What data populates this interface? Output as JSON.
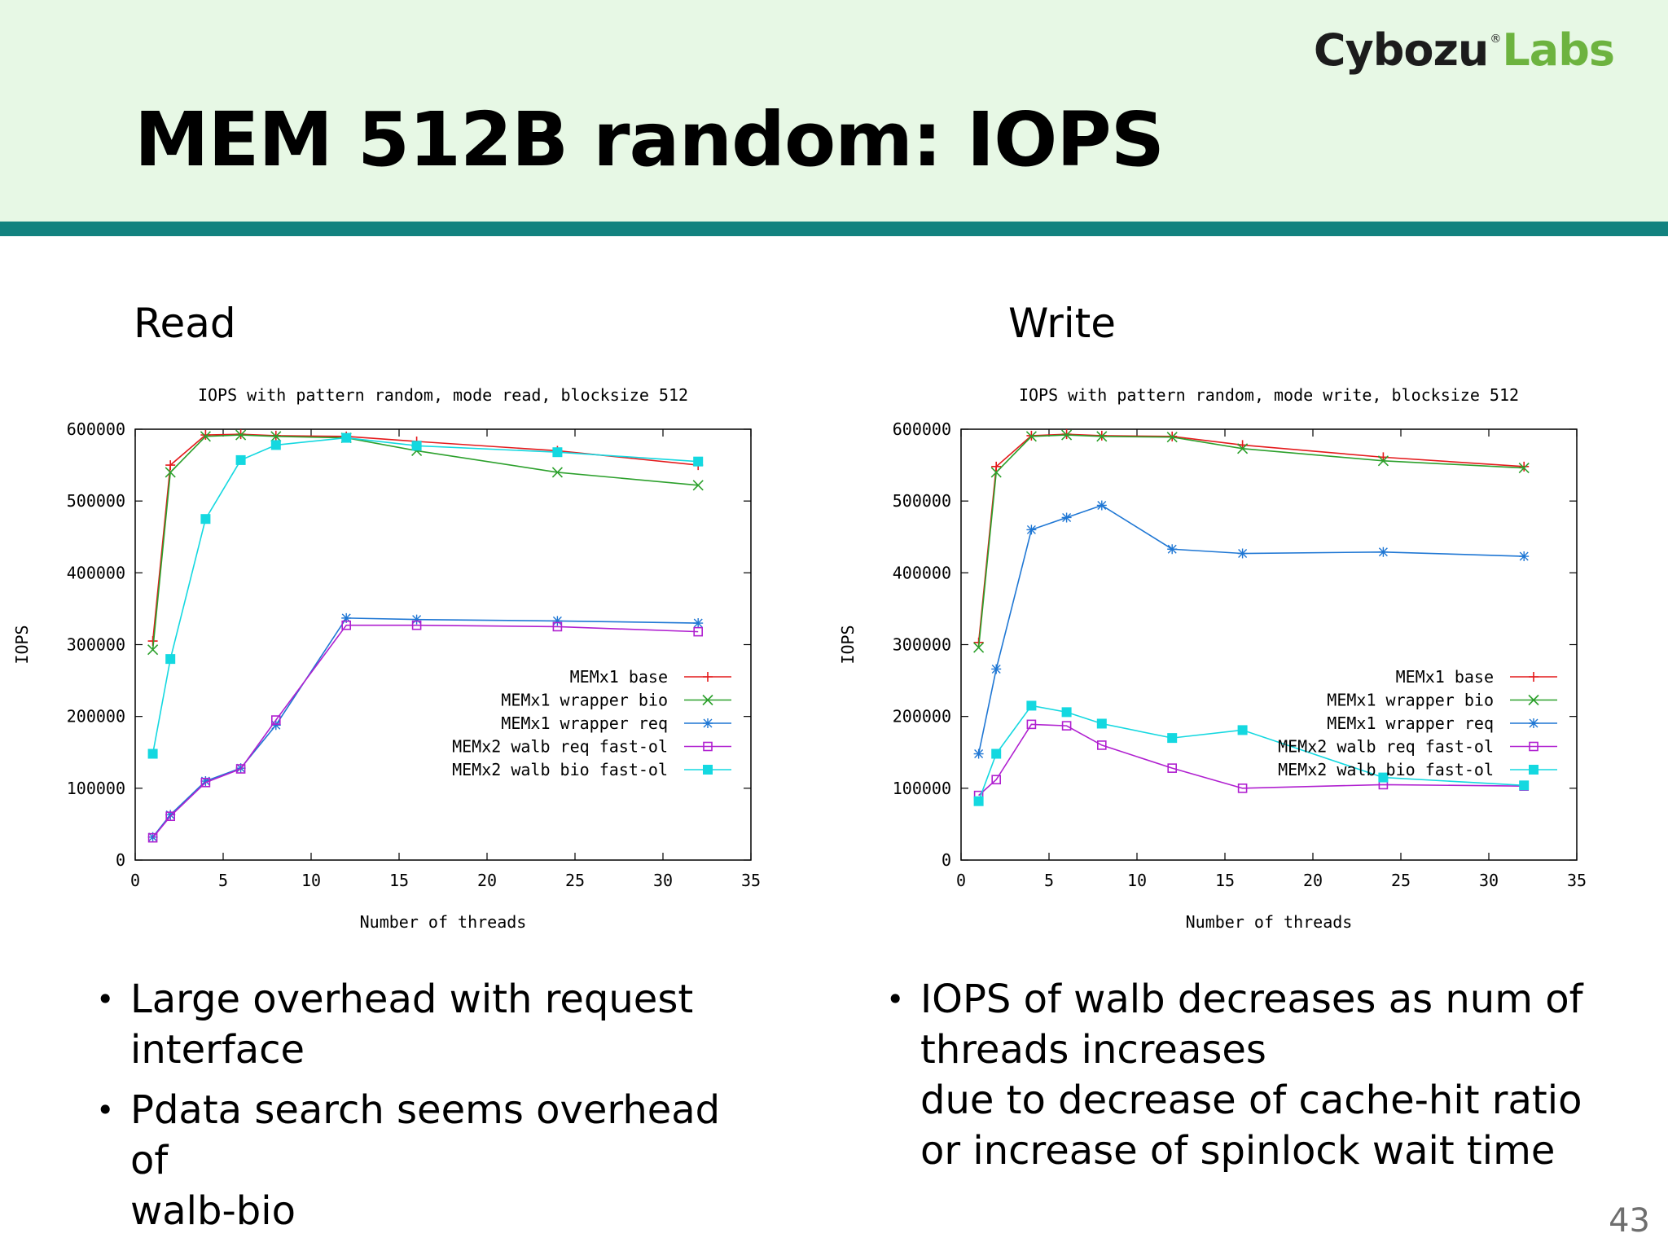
{
  "slide": {
    "title": "MEM 512B random: IOPS",
    "logo": {
      "part1": "Cybozu",
      "registered": "®",
      "part2": "Labs"
    },
    "page_number": "43",
    "colors": {
      "header_bg": "#e7f8e5",
      "header_band": "#12827f",
      "logo_green": "#6db33f"
    }
  },
  "panels": {
    "left": {
      "subhead": "Read",
      "bullets": [
        "Large overhead with request\ninterface",
        "Pdata search seems overhead of\nwalb-bio"
      ]
    },
    "right": {
      "subhead": "Write",
      "bullets": [
        "IOPS of walb decreases as num of\nthreads increases\ndue to decrease of cache-hit ratio\nor increase of spinlock wait time"
      ]
    }
  },
  "chart_data": [
    {
      "type": "line",
      "title": "IOPS with pattern random, mode read, blocksize 512",
      "xlabel": "Number of threads",
      "ylabel": "IOPS",
      "xlim": [
        0,
        35
      ],
      "ylim": [
        0,
        600000
      ],
      "xticks": [
        "0",
        "5",
        "10",
        "15",
        "20",
        "25",
        "30",
        "35"
      ],
      "yticks": [
        "0",
        "100000",
        "200000",
        "300000",
        "400000",
        "500000",
        "600000"
      ],
      "grid": false,
      "legend": "bottom-right",
      "x": [
        1,
        2,
        4,
        6,
        8,
        12,
        16,
        24,
        32
      ],
      "series": [
        {
          "name": "MEMx1 base",
          "color": "#e41a1c",
          "marker": "plus",
          "values": [
            305000,
            550000,
            592000,
            593000,
            591000,
            590000,
            583000,
            570000,
            550000
          ]
        },
        {
          "name": "MEMx1 wrapper bio",
          "color": "#2ca02c",
          "marker": "cross",
          "values": [
            293000,
            540000,
            590000,
            592000,
            590000,
            588000,
            570000,
            540000,
            522000
          ]
        },
        {
          "name": "MEMx1 wrapper req",
          "color": "#1f77d4",
          "marker": "star",
          "values": [
            32000,
            63000,
            110000,
            128000,
            188000,
            337000,
            335000,
            333000,
            330000
          ]
        },
        {
          "name": "MEMx2 walb req fast-ol",
          "color": "#b020d0",
          "marker": "square-open",
          "values": [
            31000,
            61000,
            108000,
            127000,
            195000,
            327000,
            327000,
            325000,
            318000
          ]
        },
        {
          "name": "MEMx2 walb bio fast-ol",
          "color": "#14d8e0",
          "marker": "square-filled",
          "values": [
            148000,
            280000,
            475000,
            557000,
            578000,
            588000,
            577000,
            568000,
            555000
          ]
        }
      ]
    },
    {
      "type": "line",
      "title": "IOPS with pattern random, mode write, blocksize 512",
      "xlabel": "Number of threads",
      "ylabel": "IOPS",
      "xlim": [
        0,
        35
      ],
      "ylim": [
        0,
        600000
      ],
      "xticks": [
        "0",
        "5",
        "10",
        "15",
        "20",
        "25",
        "30",
        "35"
      ],
      "yticks": [
        "0",
        "100000",
        "200000",
        "300000",
        "400000",
        "500000",
        "600000"
      ],
      "grid": false,
      "legend": "bottom-right",
      "x": [
        1,
        2,
        4,
        6,
        8,
        12,
        16,
        24,
        32
      ],
      "series": [
        {
          "name": "MEMx1 base",
          "color": "#e41a1c",
          "marker": "plus",
          "values": [
            303000,
            548000,
            591000,
            593000,
            591000,
            590000,
            578000,
            561000,
            548000
          ]
        },
        {
          "name": "MEMx1 wrapper bio",
          "color": "#2ca02c",
          "marker": "cross",
          "values": [
            296000,
            540000,
            590000,
            592000,
            590000,
            589000,
            573000,
            556000,
            546000
          ]
        },
        {
          "name": "MEMx1 wrapper req",
          "color": "#1f77d4",
          "marker": "star",
          "values": [
            148000,
            266000,
            460000,
            477000,
            494000,
            433000,
            427000,
            429000,
            423000
          ]
        },
        {
          "name": "MEMx2 walb req fast-ol",
          "color": "#b020d0",
          "marker": "square-open",
          "values": [
            90000,
            112000,
            189000,
            187000,
            160000,
            128000,
            100000,
            105000,
            103000
          ]
        },
        {
          "name": "MEMx2 walb bio fast-ol",
          "color": "#14d8e0",
          "marker": "square-filled",
          "values": [
            82000,
            148000,
            215000,
            206000,
            190000,
            170000,
            181000,
            115000,
            104000
          ]
        }
      ]
    }
  ]
}
